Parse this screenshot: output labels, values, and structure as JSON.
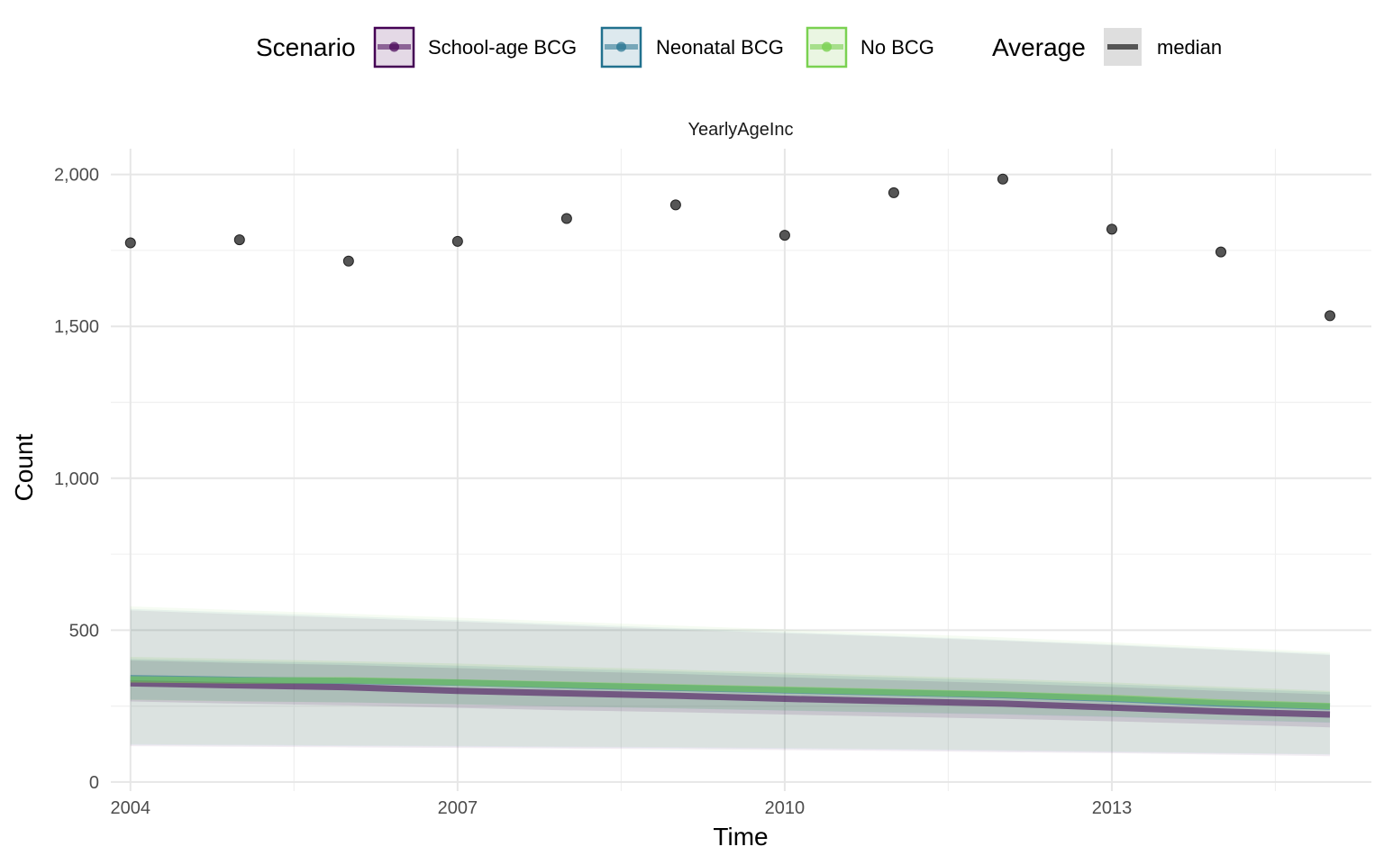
{
  "chart_data": {
    "type": "line",
    "panel_title": "YearlyAgeInc",
    "xlabel": "Time",
    "ylabel": "Count",
    "xlim": [
      2003.82,
      2015.38
    ],
    "ylim": [
      -30,
      2085
    ],
    "x_ticks": [
      2004,
      2007,
      2010,
      2013
    ],
    "x_tick_labels": [
      "2004",
      "2007",
      "2010",
      "2013"
    ],
    "y_ticks": [
      0,
      500,
      1000,
      1500,
      2000
    ],
    "y_tick_labels": [
      "0",
      "500",
      "1,000",
      "1,500",
      "2,000"
    ],
    "grid": true,
    "legend_position": "top",
    "legend": {
      "scenario_title": "Scenario",
      "average_title": "Average",
      "scenario_entries": [
        {
          "label": "School-age BCG",
          "color": "#440154"
        },
        {
          "label": "Neonatal BCG",
          "color": "#21718e"
        },
        {
          "label": "No BCG",
          "color": "#7ad151"
        }
      ],
      "average_entries": [
        {
          "label": "median",
          "color": "#555555"
        }
      ]
    },
    "observed": {
      "x": [
        2004,
        2005,
        2006,
        2007,
        2008,
        2009,
        2010,
        2011,
        2012,
        2013,
        2014,
        2015
      ],
      "y": [
        1775,
        1785,
        1715,
        1780,
        1855,
        1900,
        1800,
        1940,
        1985,
        1820,
        1745,
        1535
      ]
    },
    "series": [
      {
        "name": "School-age BCG",
        "color": "#440154",
        "x": [
          2004,
          2005,
          2006,
          2007,
          2008,
          2009,
          2010,
          2011,
          2012,
          2013,
          2014,
          2015
        ],
        "median": [
          325,
          318,
          312,
          300,
          292,
          284,
          274,
          266,
          258,
          245,
          232,
          222
        ],
        "inner_lower": [
          265,
          258,
          252,
          244,
          236,
          230,
          222,
          215,
          208,
          200,
          190,
          180
        ],
        "inner_upper": [
          400,
          392,
          385,
          375,
          365,
          356,
          345,
          335,
          325,
          313,
          300,
          288
        ],
        "outer_lower": [
          118,
          116,
          114,
          112,
          110,
          108,
          105,
          102,
          98,
          95,
          90,
          85
        ],
        "outer_upper": [
          565,
          552,
          540,
          528,
          515,
          502,
          490,
          478,
          465,
          450,
          435,
          418
        ]
      },
      {
        "name": "Neonatal BCG",
        "color": "#21718e",
        "x": [
          2004,
          2005,
          2006,
          2007,
          2008,
          2009,
          2010,
          2011,
          2012,
          2013,
          2014,
          2015
        ],
        "median": [
          342,
          336,
          333,
          327,
          318,
          310,
          302,
          294,
          286,
          274,
          258,
          248
        ],
        "inner_lower": [
          272,
          266,
          262,
          256,
          248,
          242,
          235,
          228,
          222,
          214,
          204,
          195
        ],
        "inner_upper": [
          405,
          398,
          392,
          383,
          373,
          364,
          354,
          344,
          334,
          322,
          308,
          296
        ],
        "outer_lower": [
          122,
          120,
          118,
          116,
          114,
          112,
          109,
          106,
          102,
          98,
          94,
          90
        ],
        "outer_upper": [
          570,
          558,
          546,
          533,
          520,
          507,
          494,
          481,
          468,
          453,
          438,
          422
        ]
      },
      {
        "name": "No BCG",
        "color": "#7ad151",
        "x": [
          2004,
          2005,
          2006,
          2007,
          2008,
          2009,
          2010,
          2011,
          2012,
          2013,
          2014,
          2015
        ],
        "median": [
          338,
          334,
          335,
          328,
          320,
          312,
          304,
          296,
          288,
          277,
          262,
          250
        ],
        "inner_lower": [
          270,
          265,
          262,
          256,
          249,
          243,
          236,
          230,
          224,
          216,
          206,
          197
        ],
        "inner_upper": [
          412,
          405,
          398,
          390,
          380,
          370,
          360,
          350,
          340,
          328,
          314,
          300
        ],
        "outer_lower": [
          125,
          123,
          121,
          119,
          117,
          115,
          112,
          109,
          105,
          101,
          96,
          92
        ],
        "outer_upper": [
          578,
          566,
          554,
          541,
          528,
          515,
          502,
          489,
          476,
          460,
          444,
          428
        ]
      }
    ]
  }
}
